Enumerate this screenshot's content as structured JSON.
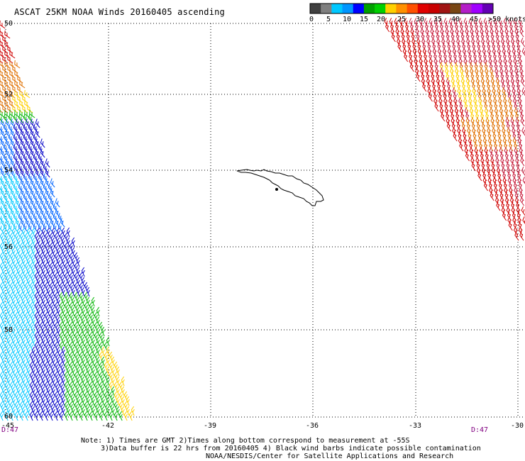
{
  "title": "ASCAT 25KM NOAA Winds 20160405 ascending",
  "legend": {
    "labels": [
      "0",
      "5",
      "10",
      "15",
      "20",
      "25",
      "30",
      "35",
      "40",
      "45",
      ">50 knots"
    ],
    "colors": [
      "#404040",
      "#808080",
      "#00c8ff",
      "#0096ff",
      "#0000ff",
      "#00a000",
      "#00d000",
      "#ffd000",
      "#ff9000",
      "#ff5000",
      "#e00000",
      "#c80000",
      "#a01414",
      "#784614",
      "#b41ec8",
      "#a000ff",
      "#6400b4"
    ]
  },
  "axes": {
    "lat_labels": [
      "50",
      "52",
      "54",
      "56",
      "58",
      "60"
    ],
    "lon_labels": [
      "-45",
      "-42",
      "-39",
      "-36",
      "-33",
      "-30"
    ]
  },
  "pass_labels": {
    "left": "D:47",
    "right": "D:47"
  },
  "notes": {
    "line1": "Note: 1) Times are GMT 2)Times along bottom correspond to measurement at -55S",
    "line2": "3)Data buffer is 22 hrs from 20160405 4) Black wind barbs indicate possible contamination",
    "line3": "NOAA/NESDIS/Center for Satellite Applications and Research"
  },
  "barb_colors": {
    "dark_blue": "#0000c8",
    "blue": "#0064ff",
    "cyan": "#00c8ff",
    "green": "#00b400",
    "yellow": "#ffd000",
    "orange": "#e07000",
    "red": "#d00000",
    "crimson": "#c81e3c"
  },
  "coastline": "South Georgia Island"
}
